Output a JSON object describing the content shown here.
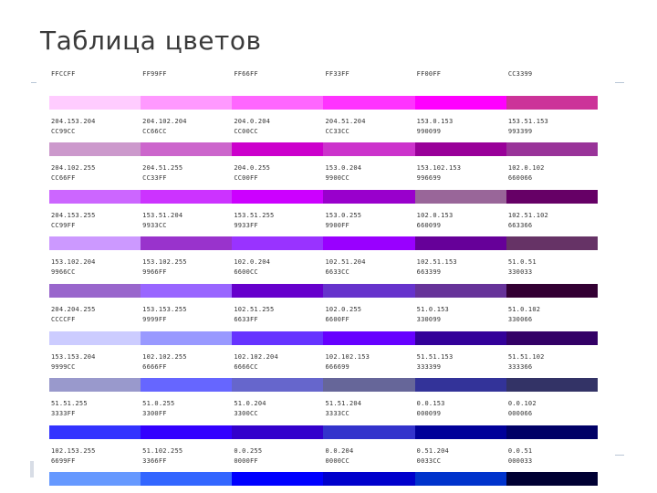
{
  "title": "Таблица цветов",
  "rows": [
    [
      {
        "rgb": "",
        "hex": "FFCCFF",
        "color": "#FFCCFF"
      },
      {
        "rgb": "",
        "hex": "FF99FF",
        "color": "#FF99FF"
      },
      {
        "rgb": "",
        "hex": "FF66FF",
        "color": "#FF66FF"
      },
      {
        "rgb": "",
        "hex": "FF33FF",
        "color": "#FF33FF"
      },
      {
        "rgb": "",
        "hex": "FF00FF",
        "color": "#FF00FF"
      },
      {
        "rgb": "",
        "hex": "CC3399",
        "color": "#CC3399"
      }
    ],
    [
      {
        "rgb": "204.153.204",
        "hex": "CC99CC",
        "color": "#CC99CC"
      },
      {
        "rgb": "204.102.204",
        "hex": "CC66CC",
        "color": "#CC66CC"
      },
      {
        "rgb": "204.0.204",
        "hex": "CC00CC",
        "color": "#CC00CC"
      },
      {
        "rgb": "204.51.204",
        "hex": "CC33CC",
        "color": "#CC33CC"
      },
      {
        "rgb": "153.0.153",
        "hex": "990099",
        "color": "#990099"
      },
      {
        "rgb": "153.51.153",
        "hex": "993399",
        "color": "#993399"
      }
    ],
    [
      {
        "rgb": "204.102.255",
        "hex": "CC66FF",
        "color": "#CC66FF"
      },
      {
        "rgb": "204.51.255",
        "hex": "CC33FF",
        "color": "#CC33FF"
      },
      {
        "rgb": "204.0.255",
        "hex": "CC00FF",
        "color": "#CC00FF"
      },
      {
        "rgb": "153.0.204",
        "hex": "9900CC",
        "color": "#9900CC"
      },
      {
        "rgb": "153.102.153",
        "hex": "996699",
        "color": "#996699"
      },
      {
        "rgb": "102.0.102",
        "hex": "660066",
        "color": "#660066"
      }
    ],
    [
      {
        "rgb": "204.153.255",
        "hex": "CC99FF",
        "color": "#CC99FF"
      },
      {
        "rgb": "153.51.204",
        "hex": "9933CC",
        "color": "#9933CC"
      },
      {
        "rgb": "153.51.255",
        "hex": "9933FF",
        "color": "#9933FF"
      },
      {
        "rgb": "153.0.255",
        "hex": "9900FF",
        "color": "#9900FF"
      },
      {
        "rgb": "102.0.153",
        "hex": "660099",
        "color": "#660099"
      },
      {
        "rgb": "102.51.102",
        "hex": "663366",
        "color": "#663366"
      }
    ],
    [
      {
        "rgb": "153.102.204",
        "hex": "9966CC",
        "color": "#9966CC"
      },
      {
        "rgb": "153.102.255",
        "hex": "9966FF",
        "color": "#9966FF"
      },
      {
        "rgb": "102.0.204",
        "hex": "6600CC",
        "color": "#6600CC"
      },
      {
        "rgb": "102.51.204",
        "hex": "6633CC",
        "color": "#6633CC"
      },
      {
        "rgb": "102.51.153",
        "hex": "663399",
        "color": "#663399"
      },
      {
        "rgb": "51.0.51",
        "hex": "330033",
        "color": "#330033"
      }
    ],
    [
      {
        "rgb": "204.204.255",
        "hex": "CCCCFF",
        "color": "#CCCCFF"
      },
      {
        "rgb": "153.153.255",
        "hex": "9999FF",
        "color": "#9999FF"
      },
      {
        "rgb": "102.51.255",
        "hex": "6633FF",
        "color": "#6633FF"
      },
      {
        "rgb": "102.0.255",
        "hex": "6600FF",
        "color": "#6600FF"
      },
      {
        "rgb": "51.0.153",
        "hex": "330099",
        "color": "#330099"
      },
      {
        "rgb": "51.0.102",
        "hex": "330066",
        "color": "#330066"
      }
    ],
    [
      {
        "rgb": "153.153.204",
        "hex": "9999CC",
        "color": "#9999CC"
      },
      {
        "rgb": "102.102.255",
        "hex": "6666FF",
        "color": "#6666FF"
      },
      {
        "rgb": "102.102.204",
        "hex": "6666CC",
        "color": "#6666CC"
      },
      {
        "rgb": "102.102.153",
        "hex": "666699",
        "color": "#666699"
      },
      {
        "rgb": "51.51.153",
        "hex": "333399",
        "color": "#333399"
      },
      {
        "rgb": "51.51.102",
        "hex": "333366",
        "color": "#333366"
      }
    ],
    [
      {
        "rgb": "51.51.255",
        "hex": "3333FF",
        "color": "#3333FF"
      },
      {
        "rgb": "51.0.255",
        "hex": "3300FF",
        "color": "#3300FF"
      },
      {
        "rgb": "51.0.204",
        "hex": "3300CC",
        "color": "#3300CC"
      },
      {
        "rgb": "51.51.204",
        "hex": "3333CC",
        "color": "#3333CC"
      },
      {
        "rgb": "0.0.153",
        "hex": "000099",
        "color": "#000099"
      },
      {
        "rgb": "0.0.102",
        "hex": "000066",
        "color": "#000066"
      }
    ],
    [
      {
        "rgb": "102.153.255",
        "hex": "6699FF",
        "color": "#6699FF"
      },
      {
        "rgb": "51.102.255",
        "hex": "3366FF",
        "color": "#3366FF"
      },
      {
        "rgb": "0.0.255",
        "hex": "0000FF",
        "color": "#0000FF"
      },
      {
        "rgb": "0.0.204",
        "hex": "0000CC",
        "color": "#0000CC"
      },
      {
        "rgb": "0.51.204",
        "hex": "0033CC",
        "color": "#0033CC"
      },
      {
        "rgb": "0.0.51",
        "hex": "000033",
        "color": "#000033"
      }
    ]
  ]
}
